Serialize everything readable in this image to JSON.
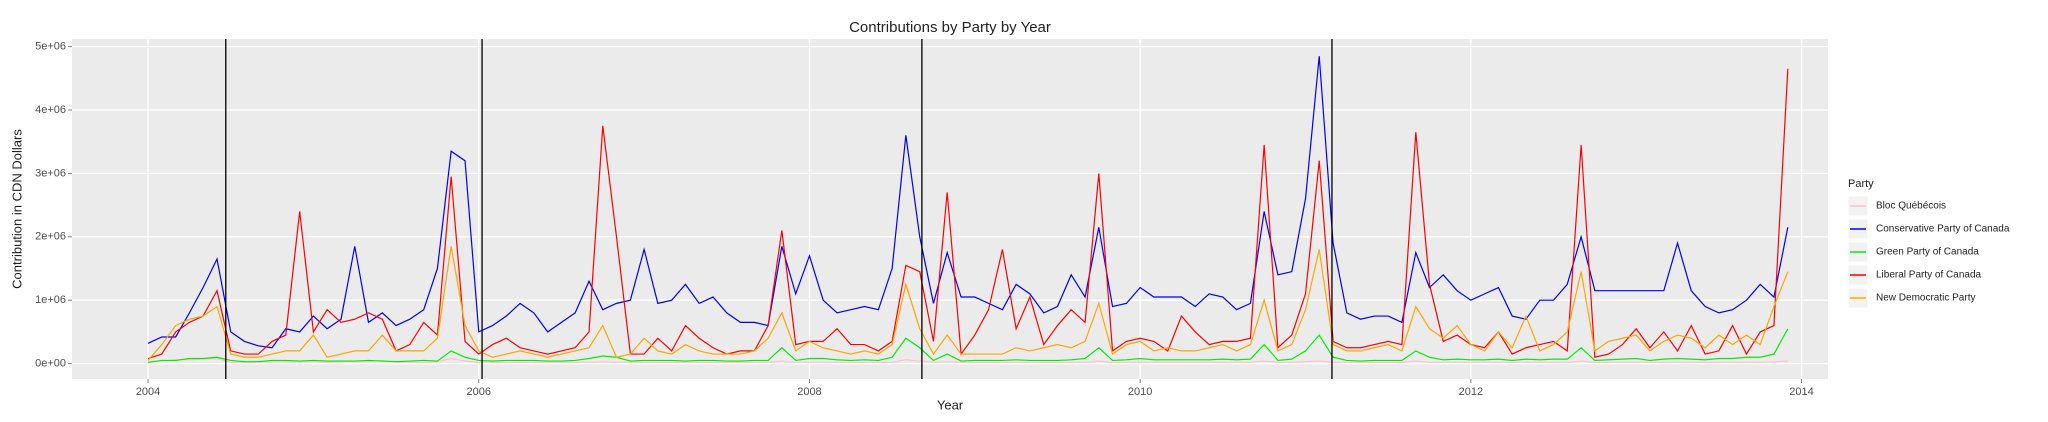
{
  "chart_data": {
    "type": "line",
    "title": "Contributions by Party by Year",
    "x_label": "Year",
    "y_label": "Contribution in CDN Dollars",
    "legend_title": "Party",
    "legend_position": "right",
    "grid": true,
    "xlim": [
      2003.54,
      2014.16
    ],
    "ylim": [
      -243000,
      5120000
    ],
    "xticks": [
      2004,
      2006,
      2008,
      2010,
      2012,
      2014
    ],
    "yticks": [
      {
        "value": 0,
        "label": "0e+00"
      },
      {
        "value": 1000000,
        "label": "1e+06"
      },
      {
        "value": 2000000,
        "label": "2e+06"
      },
      {
        "value": 3000000,
        "label": "3e+06"
      },
      {
        "value": 4000000,
        "label": "4e+06"
      },
      {
        "value": 5000000,
        "label": "5e+06"
      }
    ],
    "vlines": [
      2004.47,
      2006.02,
      2008.68,
      2011.16
    ],
    "vline_color": "#000000",
    "x": [
      2004,
      2004.083,
      2004.167,
      2004.25,
      2004.333,
      2004.417,
      2004.5,
      2004.583,
      2004.667,
      2004.75,
      2004.833,
      2004.917,
      2005,
      2005.083,
      2005.167,
      2005.25,
      2005.333,
      2005.417,
      2005.5,
      2005.583,
      2005.667,
      2005.75,
      2005.833,
      2005.917,
      2006,
      2006.083,
      2006.167,
      2006.25,
      2006.333,
      2006.417,
      2006.5,
      2006.583,
      2006.667,
      2006.75,
      2006.833,
      2006.917,
      2007,
      2007.083,
      2007.167,
      2007.25,
      2007.333,
      2007.417,
      2007.5,
      2007.583,
      2007.667,
      2007.75,
      2007.833,
      2007.917,
      2008,
      2008.083,
      2008.167,
      2008.25,
      2008.333,
      2008.417,
      2008.5,
      2008.583,
      2008.667,
      2008.75,
      2008.833,
      2008.917,
      2009,
      2009.083,
      2009.167,
      2009.25,
      2009.333,
      2009.417,
      2009.5,
      2009.583,
      2009.667,
      2009.75,
      2009.833,
      2009.917,
      2010,
      2010.083,
      2010.167,
      2010.25,
      2010.333,
      2010.417,
      2010.5,
      2010.583,
      2010.667,
      2010.75,
      2010.833,
      2010.917,
      2011,
      2011.083,
      2011.167,
      2011.25,
      2011.333,
      2011.417,
      2011.5,
      2011.583,
      2011.667,
      2011.75,
      2011.833,
      2011.917,
      2012,
      2012.083,
      2012.167,
      2012.25,
      2012.333,
      2012.417,
      2012.5,
      2012.583,
      2012.667,
      2012.75,
      2012.833,
      2012.917,
      2013,
      2013.083,
      2013.167,
      2013.25,
      2013.333,
      2013.417,
      2013.5,
      2013.583,
      2013.667,
      2013.75,
      2013.833,
      2013.917
    ],
    "series": [
      {
        "name": "Bloc Québécois",
        "color": "#ffc0cb",
        "values": [
          30000,
          40000,
          60000,
          60000,
          70000,
          80000,
          20000,
          20000,
          20000,
          30000,
          30000,
          30000,
          30000,
          20000,
          30000,
          30000,
          30000,
          50000,
          20000,
          20000,
          20000,
          30000,
          80000,
          40000,
          20000,
          20000,
          20000,
          20000,
          20000,
          20000,
          20000,
          20000,
          20000,
          30000,
          20000,
          20000,
          20000,
          20000,
          20000,
          20000,
          20000,
          20000,
          20000,
          20000,
          20000,
          20000,
          40000,
          20000,
          20000,
          20000,
          20000,
          20000,
          20000,
          20000,
          20000,
          60000,
          40000,
          20000,
          30000,
          20000,
          20000,
          20000,
          20000,
          20000,
          20000,
          20000,
          20000,
          20000,
          20000,
          40000,
          20000,
          20000,
          20000,
          20000,
          20000,
          20000,
          20000,
          20000,
          20000,
          20000,
          20000,
          40000,
          20000,
          20000,
          30000,
          40000,
          20000,
          20000,
          20000,
          20000,
          20000,
          20000,
          40000,
          20000,
          20000,
          20000,
          20000,
          20000,
          20000,
          20000,
          20000,
          20000,
          20000,
          20000,
          40000,
          20000,
          20000,
          20000,
          20000,
          20000,
          20000,
          20000,
          20000,
          20000,
          20000,
          20000,
          20000,
          20000,
          30000,
          40000
        ]
      },
      {
        "name": "Conservative Party of Canada",
        "color": "#0000ff",
        "values": [
          320000,
          420000,
          420000,
          800000,
          1200000,
          1650000,
          500000,
          350000,
          280000,
          250000,
          550000,
          500000,
          750000,
          550000,
          700000,
          1850000,
          650000,
          800000,
          600000,
          700000,
          850000,
          1500000,
          3350000,
          3200000,
          500000,
          600000,
          750000,
          950000,
          800000,
          500000,
          650000,
          800000,
          1300000,
          850000,
          950000,
          1000000,
          1800000,
          950000,
          1000000,
          1250000,
          950000,
          1050000,
          800000,
          650000,
          650000,
          600000,
          1850000,
          1100000,
          1700000,
          1000000,
          800000,
          850000,
          900000,
          850000,
          1500000,
          3600000,
          2000000,
          950000,
          1750000,
          1050000,
          1050000,
          950000,
          850000,
          1250000,
          1100000,
          800000,
          900000,
          1400000,
          1050000,
          2150000,
          900000,
          950000,
          1200000,
          1050000,
          1050000,
          1050000,
          900000,
          1100000,
          1050000,
          850000,
          950000,
          2400000,
          1400000,
          1450000,
          2600000,
          4850000,
          1900000,
          800000,
          700000,
          750000,
          750000,
          650000,
          1750000,
          1200000,
          1400000,
          1150000,
          1000000,
          1100000,
          1200000,
          750000,
          700000,
          1000000,
          1000000,
          1250000,
          2000000,
          1150000,
          1150000,
          1150000,
          1150000,
          1150000,
          1150000,
          1900000,
          1150000,
          900000,
          800000,
          850000,
          1000000,
          1250000,
          1050000,
          2150000
        ]
      },
      {
        "name": "Green Party of Canada",
        "color": "#00ee00",
        "values": [
          20000,
          50000,
          50000,
          80000,
          80000,
          100000,
          50000,
          30000,
          30000,
          50000,
          50000,
          40000,
          50000,
          40000,
          40000,
          40000,
          50000,
          40000,
          30000,
          40000,
          50000,
          40000,
          200000,
          100000,
          50000,
          40000,
          50000,
          50000,
          50000,
          40000,
          40000,
          50000,
          80000,
          120000,
          100000,
          40000,
          50000,
          50000,
          50000,
          40000,
          50000,
          50000,
          40000,
          40000,
          50000,
          50000,
          250000,
          50000,
          80000,
          80000,
          60000,
          50000,
          60000,
          50000,
          100000,
          400000,
          250000,
          50000,
          150000,
          40000,
          50000,
          50000,
          50000,
          60000,
          50000,
          50000,
          50000,
          60000,
          80000,
          250000,
          50000,
          60000,
          80000,
          60000,
          60000,
          60000,
          60000,
          60000,
          70000,
          60000,
          70000,
          300000,
          50000,
          70000,
          200000,
          450000,
          100000,
          50000,
          40000,
          50000,
          50000,
          50000,
          200000,
          100000,
          60000,
          70000,
          60000,
          60000,
          70000,
          50000,
          70000,
          60000,
          70000,
          70000,
          250000,
          50000,
          60000,
          70000,
          80000,
          50000,
          70000,
          80000,
          70000,
          60000,
          80000,
          80000,
          100000,
          100000,
          150000,
          550000
        ]
      },
      {
        "name": "Liberal Party of Canada",
        "color": "#ff0000",
        "values": [
          80000,
          150000,
          500000,
          650000,
          750000,
          1150000,
          200000,
          150000,
          150000,
          350000,
          450000,
          2400000,
          500000,
          850000,
          650000,
          700000,
          800000,
          700000,
          200000,
          300000,
          650000,
          450000,
          2950000,
          350000,
          150000,
          300000,
          400000,
          250000,
          200000,
          150000,
          200000,
          250000,
          500000,
          3750000,
          2000000,
          150000,
          150000,
          400000,
          200000,
          600000,
          400000,
          250000,
          150000,
          200000,
          200000,
          600000,
          2100000,
          300000,
          350000,
          350000,
          550000,
          300000,
          300000,
          200000,
          350000,
          1550000,
          1450000,
          350000,
          2700000,
          150000,
          450000,
          850000,
          1800000,
          550000,
          1050000,
          300000,
          600000,
          850000,
          650000,
          3000000,
          200000,
          350000,
          400000,
          350000,
          200000,
          750000,
          500000,
          300000,
          350000,
          350000,
          400000,
          3450000,
          250000,
          450000,
          1100000,
          3200000,
          350000,
          250000,
          250000,
          300000,
          350000,
          300000,
          3650000,
          1250000,
          350000,
          450000,
          300000,
          250000,
          500000,
          150000,
          250000,
          300000,
          350000,
          200000,
          3450000,
          100000,
          150000,
          300000,
          550000,
          250000,
          500000,
          200000,
          600000,
          150000,
          200000,
          600000,
          150000,
          500000,
          600000,
          4650000
        ]
      },
      {
        "name": "New Democratic Party",
        "color": "#ffa500",
        "values": [
          50000,
          300000,
          600000,
          700000,
          750000,
          900000,
          150000,
          100000,
          100000,
          150000,
          200000,
          200000,
          450000,
          100000,
          150000,
          200000,
          200000,
          450000,
          200000,
          200000,
          200000,
          400000,
          1850000,
          600000,
          200000,
          100000,
          150000,
          200000,
          150000,
          100000,
          150000,
          200000,
          250000,
          600000,
          100000,
          150000,
          400000,
          200000,
          150000,
          300000,
          200000,
          150000,
          150000,
          150000,
          200000,
          400000,
          800000,
          200000,
          350000,
          250000,
          200000,
          150000,
          200000,
          150000,
          300000,
          1250000,
          550000,
          150000,
          450000,
          150000,
          150000,
          150000,
          150000,
          250000,
          200000,
          250000,
          300000,
          250000,
          350000,
          950000,
          150000,
          300000,
          350000,
          200000,
          250000,
          200000,
          200000,
          250000,
          300000,
          200000,
          300000,
          1000000,
          200000,
          300000,
          850000,
          1800000,
          300000,
          200000,
          200000,
          250000,
          300000,
          200000,
          900000,
          550000,
          400000,
          600000,
          300000,
          200000,
          500000,
          250000,
          750000,
          200000,
          300000,
          500000,
          1450000,
          200000,
          350000,
          400000,
          450000,
          200000,
          350000,
          450000,
          400000,
          250000,
          450000,
          300000,
          450000,
          300000,
          900000,
          1450000
        ]
      }
    ]
  }
}
